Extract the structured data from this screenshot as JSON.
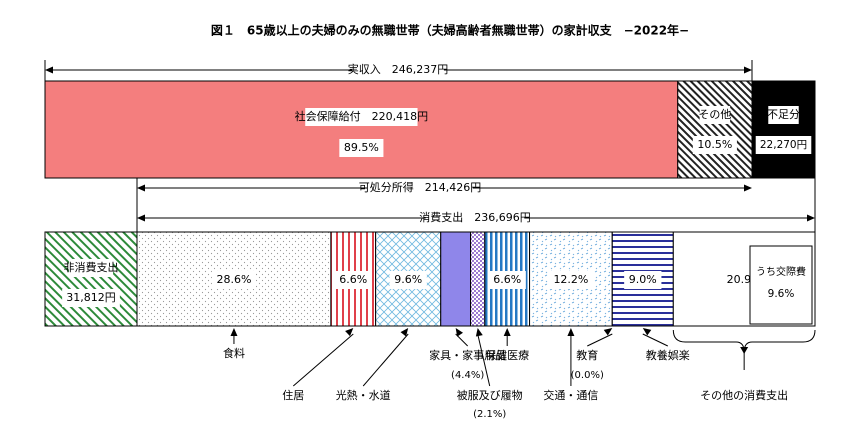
{
  "chart_data": {
    "type": "bar",
    "title": "図１　65歳以上の夫婦のみの無職世帯（夫婦高齢者無職世帯）の家計収支　−2022年−",
    "income": {
      "label": "実収入",
      "amount": "246,237円",
      "segments": [
        {
          "name": "社会保障給付",
          "amount": "220,418円",
          "percent": "89.5%",
          "value": 89.5
        },
        {
          "name": "その他",
          "percent": "10.5%",
          "value": 10.5
        }
      ],
      "shortfall": {
        "name": "不足分",
        "amount": "22,270円"
      }
    },
    "disposable": {
      "label": "可処分所得",
      "amount": "214,426円"
    },
    "consumption": {
      "label": "消費支出",
      "amount": "236,696円"
    },
    "non_consumption": {
      "name": "非消費支出",
      "amount": "31,812円"
    },
    "expenditure": [
      {
        "name": "食料",
        "percent": "28.6%",
        "value": 28.6
      },
      {
        "name": "住居",
        "percent": "6.6%",
        "value": 6.6
      },
      {
        "name": "光熱・水道",
        "percent": "9.6%",
        "value": 9.6
      },
      {
        "name": "家具・家事用品",
        "percent": "(4.4%)",
        "value": 4.4
      },
      {
        "name": "被服及び履物",
        "percent": "(2.1%)",
        "value": 2.1
      },
      {
        "name": "保健医療",
        "percent": "6.6%",
        "value": 6.6
      },
      {
        "name": "交通・通信",
        "percent": "12.2%",
        "value": 12.2
      },
      {
        "name": "教育",
        "percent": "(0.0%)",
        "value": 0.0
      },
      {
        "name": "教養娯楽",
        "percent": "9.0%",
        "value": 9.0
      },
      {
        "name": "その他の消費支出",
        "percent": "20.9%",
        "value": 20.9
      }
    ],
    "sub_note": {
      "label": "うち交際費",
      "percent": "9.6%"
    }
  }
}
